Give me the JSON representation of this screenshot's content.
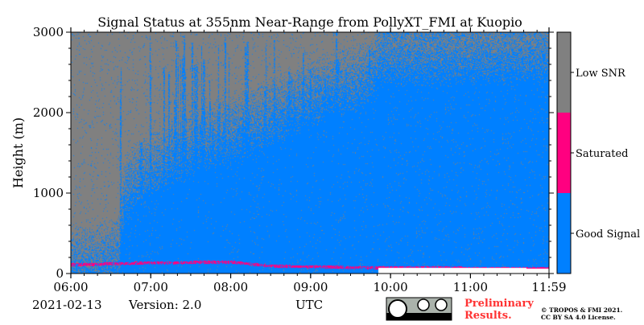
{
  "chart_data": {
    "type": "heatmap",
    "title": "Signal Status at 355nm Near-Range from PollyXT_FMI at Kuopio",
    "xlabel": "UTC",
    "ylabel": "Height (m)",
    "x_ticks": [
      "06:00",
      "07:00",
      "08:00",
      "09:00",
      "10:00",
      "11:00",
      "11:59"
    ],
    "x_tick_hours": [
      0,
      1,
      2,
      3,
      4,
      5,
      5.983
    ],
    "xlim_hours": [
      0,
      5.983
    ],
    "y_ticks": [
      0,
      1000,
      2000,
      3000
    ],
    "ylim": [
      0,
      3000
    ],
    "categories": [
      "Good Signal",
      "Saturated",
      "Low SNR"
    ],
    "colors": {
      "good": "#0080ff",
      "saturated": "#ff0080",
      "low": "#808080"
    },
    "low_snr_boundary_m": [
      {
        "t": 0.0,
        "h": 300
      },
      {
        "t": 0.3,
        "h": 340
      },
      {
        "t": 0.6,
        "h": 420
      },
      {
        "t": 0.67,
        "h": 1200
      },
      {
        "t": 1.0,
        "h": 1500
      },
      {
        "t": 1.5,
        "h": 1750
      },
      {
        "t": 2.0,
        "h": 1950
      },
      {
        "t": 2.5,
        "h": 2150
      },
      {
        "t": 3.0,
        "h": 2400
      },
      {
        "t": 3.5,
        "h": 2550
      },
      {
        "t": 3.8,
        "h": 2700
      },
      {
        "t": 3.85,
        "h": 2900
      },
      {
        "t": 5.983,
        "h": 2950
      }
    ],
    "saturated_band_m": [
      {
        "t": 0.0,
        "h": 125
      },
      {
        "t": 1.0,
        "h": 150
      },
      {
        "t": 2.0,
        "h": 160
      },
      {
        "t": 2.5,
        "h": 110
      },
      {
        "t": 3.0,
        "h": 100
      },
      {
        "t": 3.8,
        "h": 90
      },
      {
        "t": 5.983,
        "h": 80
      }
    ],
    "no_data_below_m": 70,
    "no_data_from_hour": 3.85,
    "no_data_to_hour": 5.7
  },
  "footer": {
    "date": "2021-02-13",
    "version": "Version: 2.0",
    "xlabel": "UTC",
    "preliminary": "Preliminary\nResults.",
    "copyright_line1": "© TROPOS & FMI 2021.",
    "copyright_line2": "CC BY SA 4.0 License.",
    "license_badge": "cc-by-sa-badge",
    "badge_colors": {
      "body": "#aab2ab",
      "bar": "#000000",
      "circle": "#ffffff"
    },
    "preliminary_color": "#ff3333"
  }
}
